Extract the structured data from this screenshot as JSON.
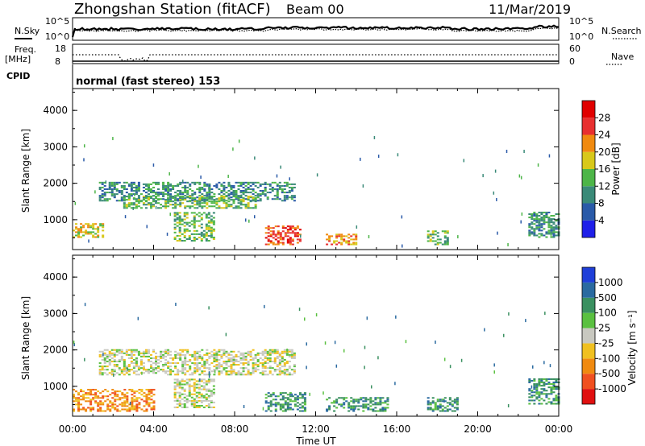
{
  "header": {
    "station": "Zhongshan Station (fitACF)",
    "beam": "Beam 00",
    "date": "11/Mar/2019"
  },
  "left_labels": {
    "nsky": "N.Sky",
    "freq": "Freq.",
    "mhz": "[MHz]",
    "cpid": "CPID"
  },
  "right_labels": {
    "nsearch": "N.Search",
    "nave": "Nave"
  },
  "top_axes": {
    "noise_top": "10^5",
    "noise_bottom": "10^0",
    "freq_top": "18",
    "freq_bottom": "8",
    "nave_top": "60",
    "nave_bottom": "0"
  },
  "mode_text": "normal (fast stereo) 153",
  "chart_data": [
    {
      "type": "heatmap",
      "name": "power",
      "xlabel": "Time UT",
      "ylabel": "Slant Range [km]",
      "xlim": [
        0,
        24
      ],
      "ylim": [
        180,
        4600
      ],
      "yticks": [
        "1000",
        "2000",
        "3000",
        "4000"
      ],
      "xticks": [
        "00:00",
        "04:00",
        "08:00",
        "12:00",
        "16:00",
        "20:00",
        "00:00"
      ],
      "colorbar": {
        "label": "Power [dB]",
        "ticks": [
          "4",
          "8",
          "12",
          "16",
          "20",
          "24",
          "28"
        ],
        "colors": [
          "#1f1fe8",
          "#2a5aa8",
          "#3a8a78",
          "#4db548",
          "#d8c81a",
          "#f08a10",
          "#e83030",
          "#e00000"
        ]
      },
      "regions": [
        {
          "t0": 1.3,
          "t1": 11.0,
          "r0": 1500,
          "r1": 2000,
          "level": 2
        },
        {
          "t0": 2.5,
          "t1": 9.0,
          "r0": 1300,
          "r1": 1650,
          "level": 3
        },
        {
          "t0": 0.0,
          "t1": 1.5,
          "r0": 500,
          "r1": 900,
          "level": 4
        },
        {
          "t0": 5.0,
          "t1": 7.0,
          "r0": 400,
          "r1": 1200,
          "level": 3
        },
        {
          "t0": 9.5,
          "t1": 11.2,
          "r0": 300,
          "r1": 800,
          "level": 6
        },
        {
          "t0": 12.5,
          "t1": 14.0,
          "r0": 300,
          "r1": 600,
          "level": 5
        },
        {
          "t0": 17.5,
          "t1": 18.5,
          "r0": 300,
          "r1": 700,
          "level": 3
        },
        {
          "t0": 22.5,
          "t1": 24.0,
          "r0": 500,
          "r1": 1200,
          "level": 2
        }
      ]
    },
    {
      "type": "heatmap",
      "name": "velocity",
      "xlabel": "Time UT",
      "ylabel": "Slant Range [km]",
      "xlim": [
        0,
        24
      ],
      "ylim": [
        180,
        4600
      ],
      "yticks": [
        "1000",
        "2000",
        "3000",
        "4000"
      ],
      "xticks": [
        "00:00",
        "04:00",
        "08:00",
        "12:00",
        "16:00",
        "20:00",
        "00:00"
      ],
      "colorbar": {
        "label": "Velocity [m s⁻¹]",
        "ticks": [
          "1000",
          "500",
          "100",
          "25",
          "-25",
          "-100",
          "-500",
          "-1000"
        ],
        "colors": [
          "#1f3fd8",
          "#2a6aa0",
          "#3a9060",
          "#5ac040",
          "#c8c8c0",
          "#f0c020",
          "#f08a10",
          "#f05020",
          "#e01010"
        ]
      },
      "regions": [
        {
          "t0": 1.3,
          "t1": 11.0,
          "r0": 1300,
          "r1": 2000,
          "level": 4
        },
        {
          "t0": 0.0,
          "t1": 4.0,
          "r0": 300,
          "r1": 900,
          "level": 6
        },
        {
          "t0": 5.0,
          "t1": 7.0,
          "r0": 400,
          "r1": 1200,
          "level": 4
        },
        {
          "t0": 9.5,
          "t1": 11.5,
          "r0": 300,
          "r1": 800,
          "level": 2
        },
        {
          "t0": 12.5,
          "t1": 15.5,
          "r0": 300,
          "r1": 700,
          "level": 2
        },
        {
          "t0": 17.5,
          "t1": 19.0,
          "r0": 300,
          "r1": 700,
          "level": 2
        },
        {
          "t0": 22.5,
          "t1": 24.0,
          "r0": 500,
          "r1": 1200,
          "level": 2
        }
      ]
    }
  ]
}
